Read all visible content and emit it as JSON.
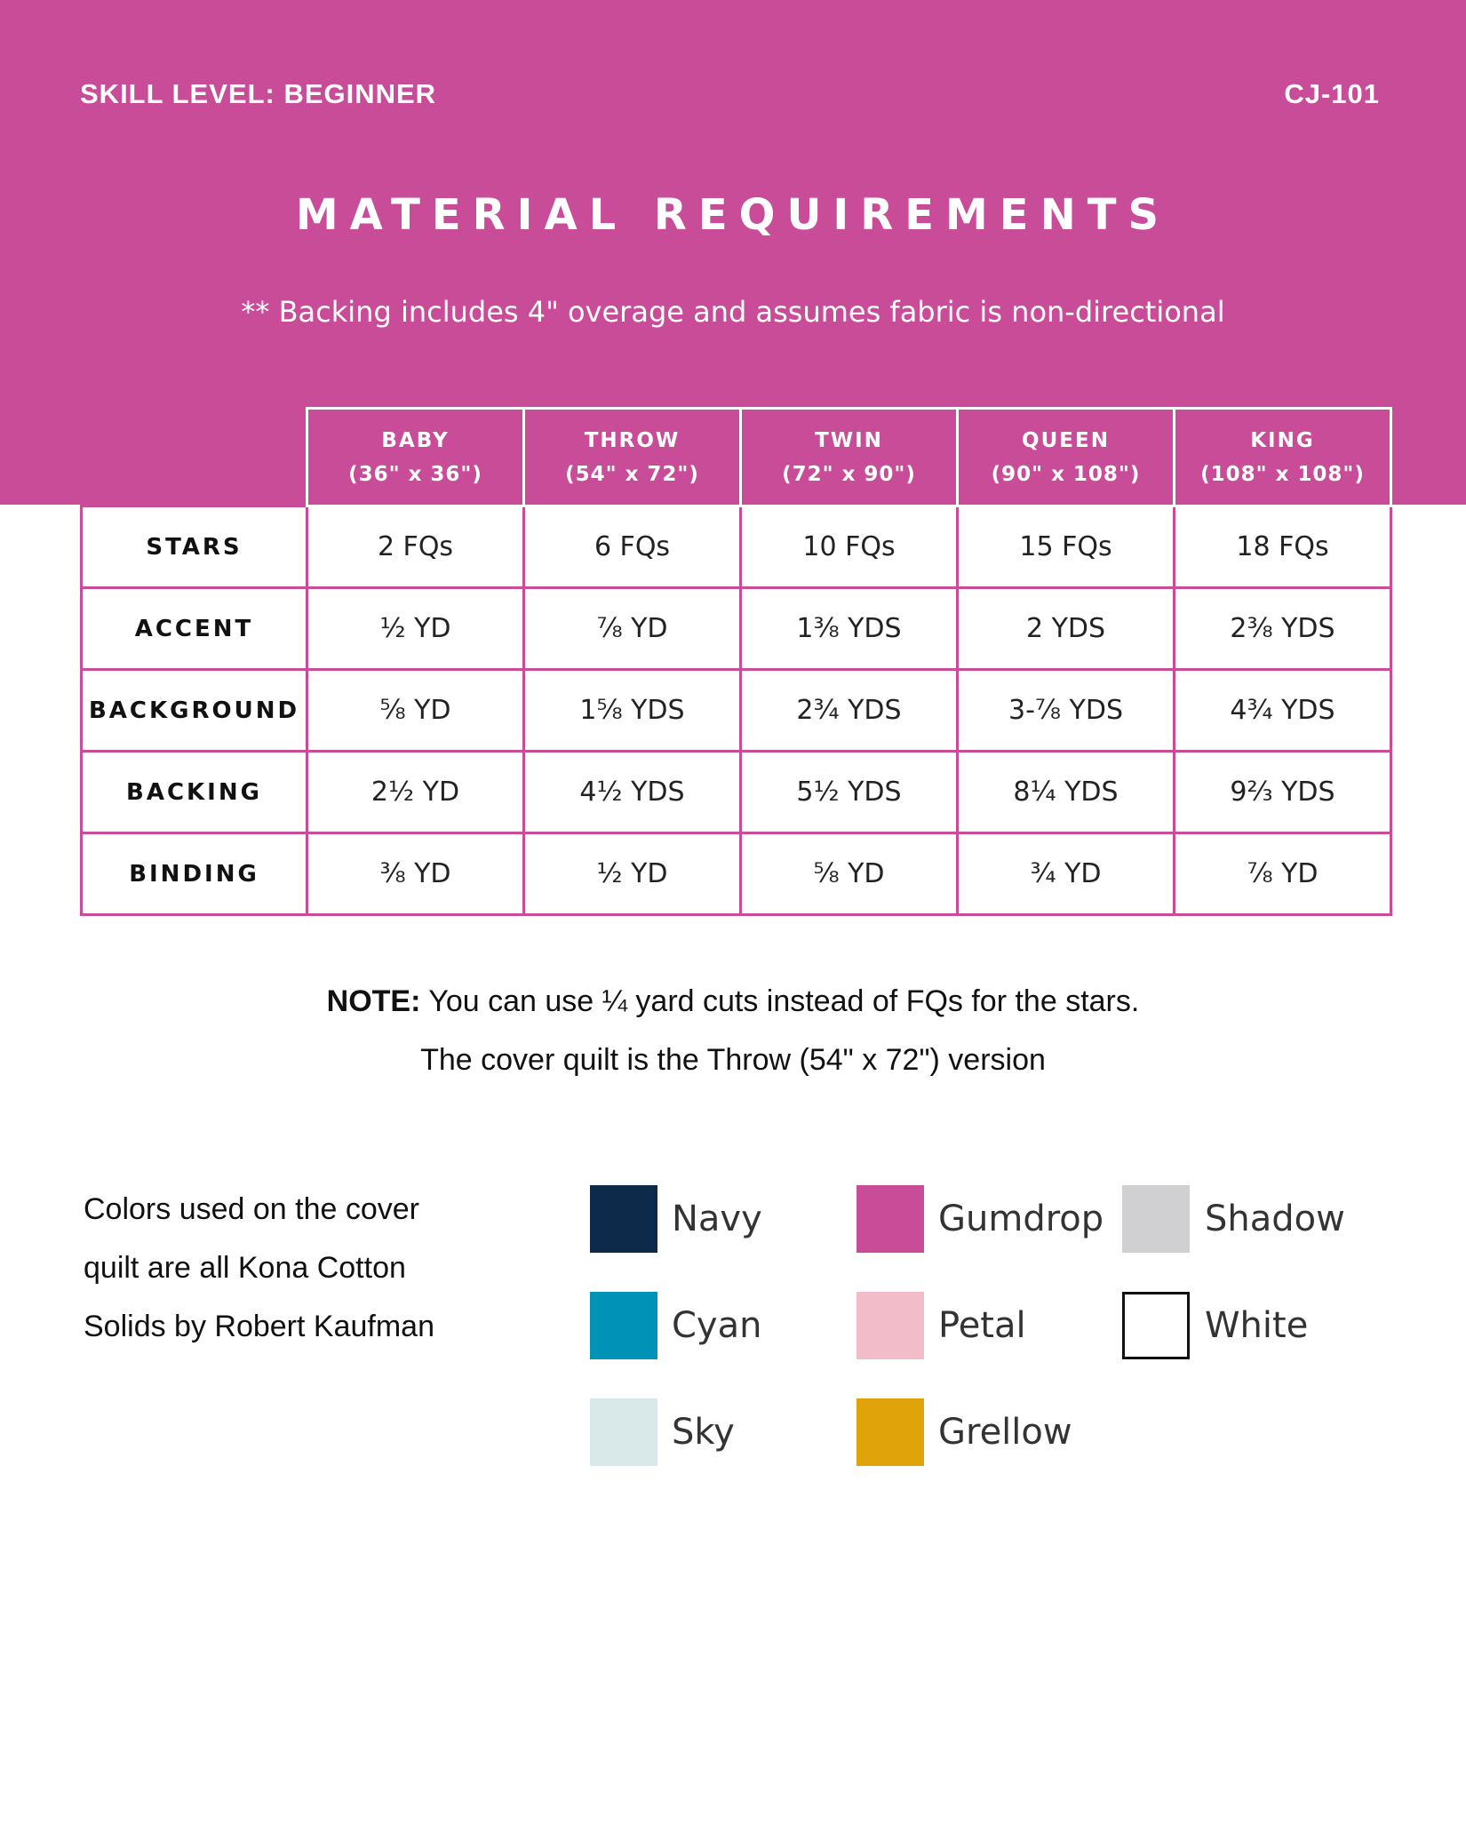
{
  "header": {
    "skill_level": "SKILL LEVEL: BEGINNER",
    "code": "CJ-101",
    "title": "MATERIAL REQUIREMENTS",
    "note": "** Backing includes 4\" overage and assumes fabric is non-directional"
  },
  "table": {
    "columns": [
      {
        "name": "BABY",
        "dims": "(36\" x 36\")"
      },
      {
        "name": "THROW",
        "dims": "(54\" x 72\")"
      },
      {
        "name": "TWIN",
        "dims": "(72\" x 90\")"
      },
      {
        "name": "QUEEN",
        "dims": "(90\" x 108\")"
      },
      {
        "name": "KING",
        "dims": "(108\" x 108\")"
      }
    ],
    "rows": [
      {
        "label": "STARS",
        "values": [
          "2 FQs",
          "6 FQs",
          "10 FQs",
          "15 FQs",
          "18 FQs"
        ]
      },
      {
        "label": "ACCENT",
        "values": [
          "½ YD",
          "⅞ YD",
          "1⅜ YDS",
          "2 YDS",
          "2⅜ YDS"
        ]
      },
      {
        "label": "BACKGROUND",
        "values": [
          "⅝ YD",
          "1⅝ YDS",
          "2¾ YDS",
          "3-⅞ YDS",
          "4¾ YDS"
        ]
      },
      {
        "label": "BACKING",
        "values": [
          "2½ YD",
          "4½ YDS",
          "5½ YDS",
          "8¼ YDS",
          "9⅔ YDS"
        ]
      },
      {
        "label": "BINDING",
        "values": [
          "⅜ YD",
          "½ YD",
          "⅝ YD",
          "¾ YD",
          "⅞ YD"
        ]
      }
    ]
  },
  "notes": {
    "note_label": "NOTE:",
    "note_text": " You can use ¼ yard cuts instead of FQs for the stars.",
    "cover_text": "The cover quilt is the Throw (54\" x 72\") version"
  },
  "colors_section": {
    "intro_lines": [
      "Colors used on the cover",
      "quilt are all Kona Cotton",
      "Solids by Robert Kaufman"
    ],
    "swatches": [
      {
        "name": "Navy",
        "color": "#0e2a4b"
      },
      {
        "name": "Cyan",
        "color": "#0093b8"
      },
      {
        "name": "Sky",
        "color": "#d9e8e9"
      },
      {
        "name": "Gumdrop",
        "color": "#c94c99"
      },
      {
        "name": "Petal",
        "color": "#f3bcc9"
      },
      {
        "name": "Grellow",
        "color": "#e0a30a"
      },
      {
        "name": "Shadow",
        "color": "#d0d0d2"
      },
      {
        "name": "White",
        "color": "#ffffff"
      }
    ]
  }
}
